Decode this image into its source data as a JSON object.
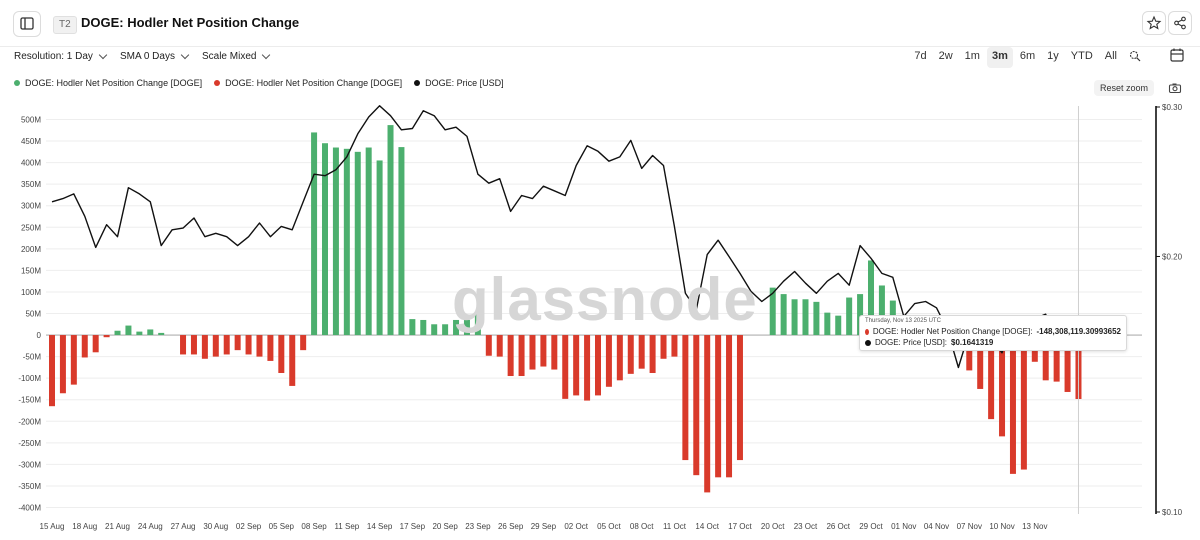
{
  "header": {
    "tier": "T2",
    "title": "DOGE: Hodler Net Position Change",
    "star_icon": "star-icon",
    "share_icon": "share-icon",
    "sidebar_icon": "sidebar-toggle-icon"
  },
  "controls": {
    "resolution": "Resolution: 1 Day",
    "sma": "SMA 0 Days",
    "scale": "Scale Mixed"
  },
  "ranges": [
    "7d",
    "2w",
    "1m",
    "3m",
    "6m",
    "1y",
    "YTD",
    "All"
  ],
  "active_range": "3m",
  "reset_zoom": "Reset zoom",
  "watermark": "glassnode",
  "colors": {
    "positive": "#4caf6e",
    "negative": "#d93a2b",
    "price": "#111111"
  },
  "chart_data": {
    "type": "bar",
    "title": "DOGE: Hodler Net Position Change",
    "legend": [
      {
        "label": "DOGE: Hodler Net Position Change [DOGE]",
        "color": "#4caf6e"
      },
      {
        "label": "DOGE: Hodler Net Position Change [DOGE]",
        "color": "#d93a2b"
      },
      {
        "label": "DOGE: Price [USD]",
        "color": "#111111"
      }
    ],
    "x_ticks": [
      "15 Aug",
      "18 Aug",
      "21 Aug",
      "24 Aug",
      "27 Aug",
      "30 Aug",
      "02 Sep",
      "05 Sep",
      "08 Sep",
      "11 Sep",
      "14 Sep",
      "17 Sep",
      "20 Sep",
      "23 Sep",
      "26 Sep",
      "29 Sep",
      "02 Oct",
      "05 Oct",
      "08 Oct",
      "11 Oct",
      "14 Oct",
      "17 Oct",
      "20 Oct",
      "23 Oct",
      "26 Oct",
      "29 Oct",
      "01 Nov",
      "04 Nov",
      "07 Nov",
      "10 Nov",
      "13 Nov"
    ],
    "y_left_ticks": [
      "500M",
      "450M",
      "400M",
      "350M",
      "300M",
      "250M",
      "200M",
      "150M",
      "100M",
      "50M",
      "0",
      "-50M",
      "-100M",
      "-150M",
      "-200M",
      "-250M",
      "-300M",
      "-350M",
      "-400M"
    ],
    "y_left_range": [
      -400,
      500
    ],
    "y_left_unit": "M DOGE",
    "y_right_ticks": [
      "$0.30",
      "$0.20",
      "$0.10"
    ],
    "y_right_range": [
      0.1,
      0.3
    ],
    "y_right_scale": "log",
    "start_date": "15 Aug",
    "series": [
      {
        "name": "DOGE: Hodler Net Position Change [DOGE]",
        "values": [
          -165,
          -135,
          -115,
          -52,
          -40,
          -5,
          10,
          22,
          8,
          13,
          5,
          0,
          -45,
          -45,
          -55,
          -50,
          -45,
          -35,
          -45,
          -50,
          -60,
          -88,
          -118,
          -35,
          470,
          445,
          435,
          432,
          425,
          435,
          405,
          487,
          436,
          37,
          35,
          25,
          25,
          35,
          35,
          48,
          -48,
          -50,
          -95,
          -95,
          -80,
          -73,
          -80,
          -148,
          -140,
          -152,
          -140,
          -120,
          -105,
          -90,
          -78,
          -88,
          -55,
          -50,
          -290,
          -325,
          -365,
          -330,
          -330,
          -290,
          0,
          0,
          110,
          95,
          83,
          83,
          77,
          52,
          45,
          87,
          95,
          173,
          115,
          80,
          0,
          0,
          0,
          0,
          0,
          0,
          -82,
          -125,
          -195,
          -235,
          -322,
          -312,
          -62,
          -105,
          -108,
          -132,
          -148.3
        ]
      },
      {
        "name": "DOGE: Price [USD]",
        "values": [
          0.232,
          0.234,
          0.237,
          0.223,
          0.205,
          0.218,
          0.211,
          0.241,
          0.237,
          0.232,
          0.206,
          0.215,
          0.216,
          0.222,
          0.211,
          0.213,
          0.211,
          0.206,
          0.211,
          0.219,
          0.211,
          0.217,
          0.215,
          0.232,
          0.25,
          0.249,
          0.253,
          0.262,
          0.279,
          0.292,
          0.301,
          0.293,
          0.282,
          0.283,
          0.297,
          0.293,
          0.282,
          0.284,
          0.277,
          0.25,
          0.244,
          0.247,
          0.226,
          0.236,
          0.234,
          0.242,
          0.239,
          0.236,
          0.256,
          0.27,
          0.266,
          0.259,
          0.262,
          0.274,
          0.254,
          0.263,
          0.256,
          0.217,
          0.181,
          0.173,
          0.201,
          0.209,
          0.2,
          0.191,
          0.182,
          0.177,
          0.181,
          0.187,
          0.192,
          0.186,
          0.181,
          0.187,
          0.191,
          0.185,
          0.206,
          0.199,
          0.191,
          0.189,
          0.17,
          0.176,
          0.177,
          0.174,
          0.164,
          0.148,
          0.163,
          0.162,
          0.16,
          0.154,
          0.168,
          0.165,
          0.169,
          0.171,
          0.156,
          0.164
        ]
      }
    ],
    "tooltip": {
      "date": "Thursday, Nov 13 2025 UTC",
      "net_label": "DOGE: Hodler Net Position Change [DOGE]:",
      "net_value": "-148,308,119.30993652",
      "price_label": "DOGE: Price [USD]:",
      "price_value": "$0.1641319"
    }
  }
}
